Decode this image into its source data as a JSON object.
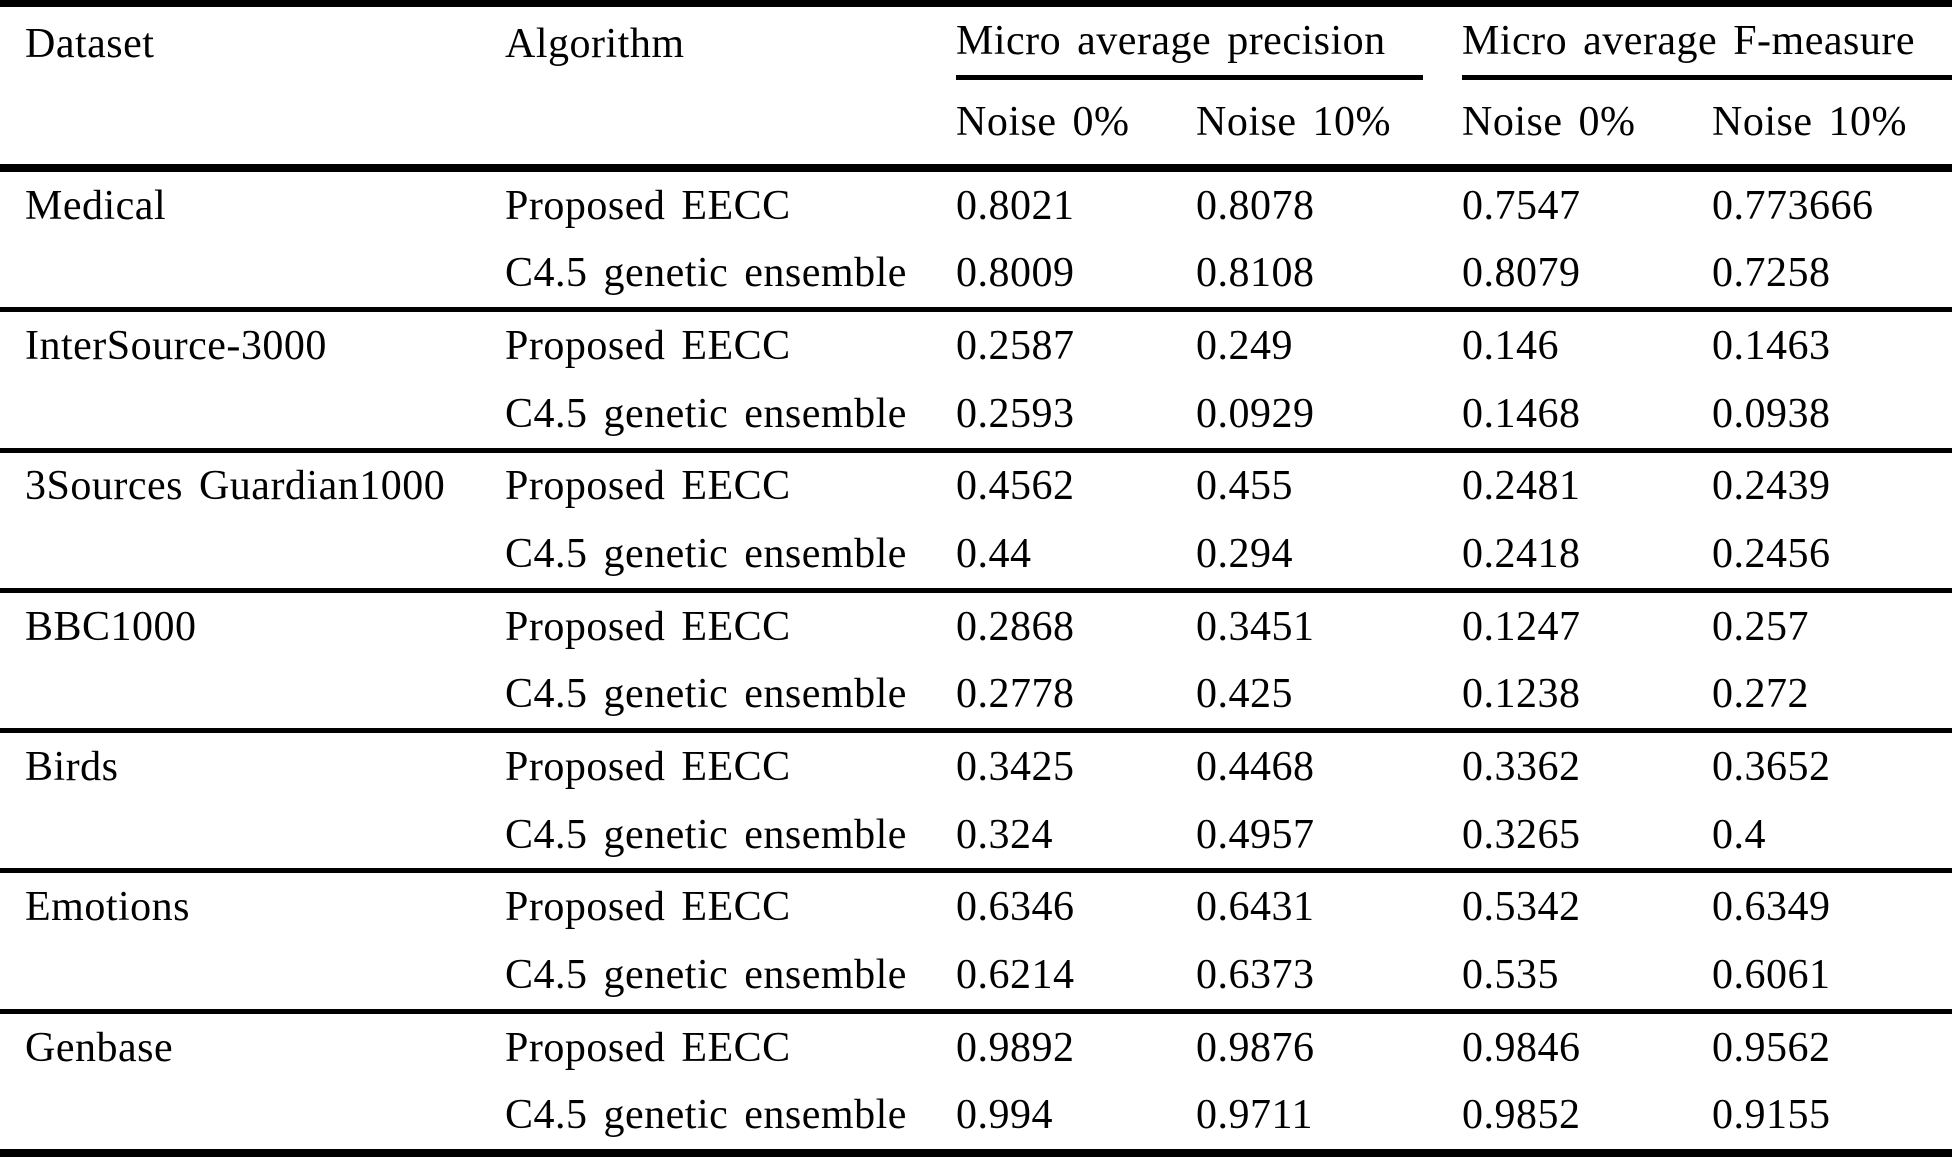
{
  "page": {
    "background_color": "#ffffff",
    "text_color": "#000000",
    "rule_color": "#000000"
  },
  "table": {
    "header": {
      "dataset": "Dataset",
      "algorithm": "Algorithm",
      "precision_group": "Micro average precision",
      "fmeasure_group": "Micro average F-measure",
      "sub": [
        "Noise 0%",
        "Noise 10%",
        "Noise 0%",
        "Noise 10%"
      ]
    },
    "groups": [
      {
        "dataset": "Medical",
        "rows": [
          {
            "algorithm": "Proposed EECC",
            "values": [
              "0.8021",
              "0.8078",
              "0.7547",
              "0.773666"
            ]
          },
          {
            "algorithm": "C4.5 genetic ensemble",
            "values": [
              "0.8009",
              "0.8108",
              "0.8079",
              "0.7258"
            ]
          }
        ]
      },
      {
        "dataset": "InterSource-3000",
        "rows": [
          {
            "algorithm": "Proposed EECC",
            "values": [
              "0.2587",
              "0.249",
              "0.146",
              "0.1463"
            ]
          },
          {
            "algorithm": "C4.5 genetic ensemble",
            "values": [
              "0.2593",
              "0.0929",
              "0.1468",
              "0.0938"
            ]
          }
        ]
      },
      {
        "dataset": "3Sources Guardian1000",
        "rows": [
          {
            "algorithm": "Proposed EECC",
            "values": [
              "0.4562",
              "0.455",
              "0.2481",
              "0.2439"
            ]
          },
          {
            "algorithm": "C4.5 genetic ensemble",
            "values": [
              "0.44",
              "0.294",
              "0.2418",
              "0.2456"
            ]
          }
        ]
      },
      {
        "dataset": "BBC1000",
        "rows": [
          {
            "algorithm": "Proposed EECC",
            "values": [
              "0.2868",
              "0.3451",
              "0.1247",
              "0.257"
            ]
          },
          {
            "algorithm": "C4.5 genetic ensemble",
            "values": [
              "0.2778",
              "0.425",
              "0.1238",
              "0.272"
            ]
          }
        ]
      },
      {
        "dataset": "Birds",
        "rows": [
          {
            "algorithm": "Proposed EECC",
            "values": [
              "0.3425",
              "0.4468",
              "0.3362",
              "0.3652"
            ]
          },
          {
            "algorithm": "C4.5 genetic ensemble",
            "values": [
              "0.324",
              "0.4957",
              "0.3265",
              "0.4"
            ]
          }
        ]
      },
      {
        "dataset": "Emotions",
        "rows": [
          {
            "algorithm": "Proposed EECC",
            "values": [
              "0.6346",
              "0.6431",
              "0.5342",
              "0.6349"
            ]
          },
          {
            "algorithm": "C4.5 genetic ensemble",
            "values": [
              "0.6214",
              "0.6373",
              "0.535",
              "0.6061"
            ]
          }
        ]
      },
      {
        "dataset": "Genbase",
        "rows": [
          {
            "algorithm": "Proposed EECC",
            "values": [
              "0.9892",
              "0.9876",
              "0.9846",
              "0.9562"
            ]
          },
          {
            "algorithm": "C4.5 genetic ensemble",
            "values": [
              "0.994",
              "0.9711",
              "0.9852",
              "0.9155"
            ]
          }
        ]
      }
    ]
  }
}
